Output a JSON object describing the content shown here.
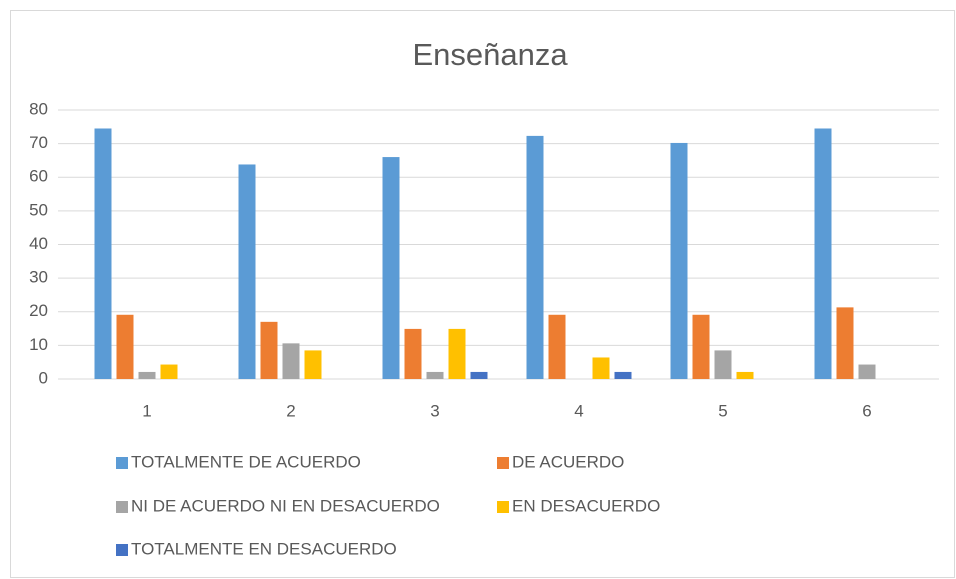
{
  "chart_data": {
    "type": "bar",
    "title": "Enseñanza",
    "categories": [
      "1",
      "2",
      "3",
      "4",
      "5",
      "6"
    ],
    "series": [
      {
        "name": "TOTALMENTE DE ACUERDO",
        "color": "#5b9bd5",
        "values": [
          74.5,
          63.8,
          66,
          72.3,
          70.2,
          74.5
        ]
      },
      {
        "name": "DE ACUERDO",
        "color": "#ed7d31",
        "values": [
          19.1,
          17,
          14.9,
          19.1,
          19.1,
          21.3
        ]
      },
      {
        "name": "NI DE ACUERDO NI EN DESACUERDO",
        "color": "#a5a5a5",
        "values": [
          2.1,
          10.6,
          2.1,
          0,
          8.5,
          4.3
        ]
      },
      {
        "name": "EN DESACUERDO",
        "color": "#ffc000",
        "values": [
          4.3,
          8.5,
          14.9,
          6.4,
          2.1,
          0
        ]
      },
      {
        "name": "TOTALMENTE EN DESACUERDO",
        "color": "#4472c4",
        "values": [
          0,
          0,
          2.1,
          2.1,
          0,
          0
        ]
      }
    ],
    "ylim": [
      0,
      80
    ],
    "yticks": [
      0,
      10,
      20,
      30,
      40,
      50,
      60,
      70,
      80
    ],
    "grid": true,
    "legend": "bottom"
  }
}
